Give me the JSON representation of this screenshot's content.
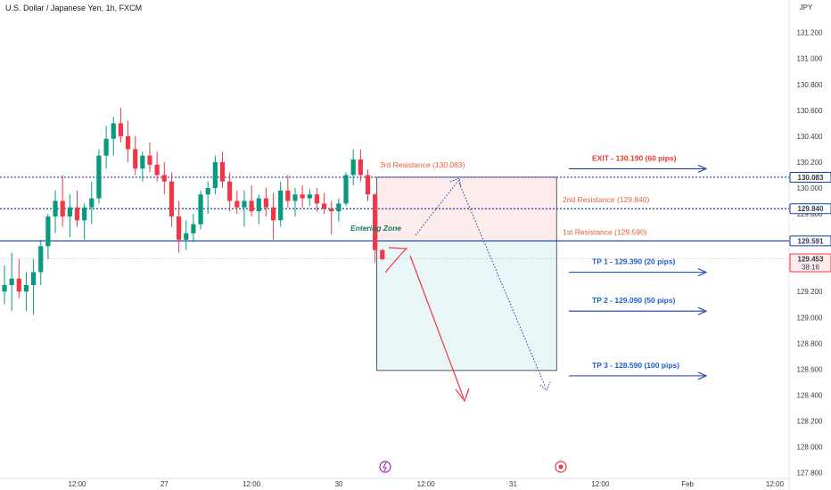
{
  "chart_data": {
    "type": "candlestick",
    "title": "U.S. Dollar / Japanese Yen, 1h, FXCM",
    "currency": "JPY",
    "ylim": [
      127.8,
      131.3
    ],
    "y_ticks": [
      "131.200",
      "131.000",
      "130.800",
      "130.600",
      "130.400",
      "130.200",
      "130.000",
      "129.800",
      "129.200",
      "129.000",
      "128.800",
      "128.600",
      "128.400",
      "128.200",
      "128.000",
      "127.800"
    ],
    "x_ticks": [
      {
        "label": "12:00",
        "index": 10
      },
      {
        "label": "27",
        "index": 22
      },
      {
        "label": "12:00",
        "index": 34
      },
      {
        "label": "30",
        "index": 46
      },
      {
        "label": "12:00",
        "index": 58
      },
      {
        "label": "31",
        "index": 70
      },
      {
        "label": "12:00",
        "index": 82
      },
      {
        "label": "Feb",
        "index": 94
      },
      {
        "label": "12:00",
        "index": 106
      }
    ],
    "candles": [
      [
        129.2,
        129.4,
        129.1,
        129.25
      ],
      [
        129.25,
        129.5,
        129.05,
        129.3
      ],
      [
        129.3,
        129.45,
        129.15,
        129.2
      ],
      [
        129.2,
        129.35,
        129.05,
        129.25
      ],
      [
        129.25,
        129.45,
        129.02,
        129.35
      ],
      [
        129.35,
        129.6,
        129.25,
        129.55
      ],
      [
        129.55,
        129.8,
        129.45,
        129.78
      ],
      [
        129.78,
        129.98,
        129.65,
        129.9
      ],
      [
        129.9,
        130.1,
        129.7,
        129.78
      ],
      [
        129.78,
        129.95,
        129.62,
        129.85
      ],
      [
        129.85,
        129.98,
        129.7,
        129.75
      ],
      [
        129.75,
        129.88,
        129.6,
        129.85
      ],
      [
        129.85,
        130.05,
        129.72,
        129.92
      ],
      [
        129.92,
        130.3,
        129.88,
        130.25
      ],
      [
        130.25,
        130.48,
        130.15,
        130.38
      ],
      [
        130.38,
        130.55,
        130.25,
        130.5
      ],
      [
        130.5,
        130.62,
        130.35,
        130.4
      ],
      [
        130.4,
        130.52,
        130.2,
        130.3
      ],
      [
        130.3,
        130.4,
        130.1,
        130.15
      ],
      [
        130.15,
        130.28,
        130.05,
        130.25
      ],
      [
        130.25,
        130.35,
        130.12,
        130.18
      ],
      [
        130.18,
        130.28,
        130.05,
        130.1
      ],
      [
        130.1,
        130.2,
        129.95,
        130.05
      ],
      [
        130.05,
        130.12,
        129.7,
        129.78
      ],
      [
        129.78,
        129.9,
        129.5,
        129.6
      ],
      [
        129.6,
        129.75,
        129.52,
        129.65
      ],
      [
        129.65,
        129.8,
        129.58,
        129.72
      ],
      [
        129.72,
        129.98,
        129.68,
        129.95
      ],
      [
        129.95,
        130.05,
        129.8,
        130.0
      ],
      [
        130.0,
        130.25,
        129.95,
        130.2
      ],
      [
        130.2,
        130.28,
        130.0,
        130.05
      ],
      [
        130.05,
        130.12,
        129.82,
        129.9
      ],
      [
        129.9,
        129.98,
        129.8,
        129.85
      ],
      [
        129.85,
        129.98,
        129.7,
        129.9
      ],
      [
        129.9,
        130.02,
        129.78,
        129.82
      ],
      [
        129.82,
        129.95,
        129.72,
        129.92
      ],
      [
        129.92,
        130.0,
        129.78,
        129.85
      ],
      [
        129.85,
        129.96,
        129.6,
        129.75
      ],
      [
        129.75,
        130.05,
        129.7,
        129.98
      ],
      [
        129.98,
        130.1,
        129.85,
        129.9
      ],
      [
        129.9,
        130.0,
        129.78,
        129.95
      ],
      [
        129.95,
        130.02,
        129.85,
        129.92
      ],
      [
        129.92,
        129.99,
        129.86,
        129.95
      ],
      [
        129.95,
        130.0,
        129.82,
        129.88
      ],
      [
        129.88,
        129.96,
        129.8,
        129.84
      ],
      [
        129.84,
        129.9,
        129.64,
        129.82
      ],
      [
        129.82,
        129.92,
        129.74,
        129.88
      ],
      [
        129.88,
        130.12,
        129.86,
        130.1
      ],
      [
        130.1,
        130.3,
        130.02,
        130.22
      ],
      [
        130.22,
        130.3,
        130.05,
        130.1
      ],
      [
        130.1,
        130.14,
        129.9,
        129.95
      ],
      [
        129.95,
        129.96,
        129.42,
        129.52
      ],
      [
        129.52,
        129.53,
        129.44,
        129.45
      ]
    ],
    "current_price": 129.453,
    "countdown": "38:16",
    "horizontal_lines": [
      {
        "price": 130.083,
        "style": "dotted",
        "color": "#1a3ea3"
      },
      {
        "price": 129.84,
        "style": "dotted",
        "color": "#1a3ea3"
      },
      {
        "price": 129.591,
        "style": "solid",
        "color": "#1a3ea3"
      }
    ],
    "price_labels": [
      {
        "label": "130.083",
        "price": 130.083,
        "color": "#1a3ea3"
      },
      {
        "label": "129.840",
        "price": 129.84,
        "color": "#1a3ea3"
      },
      {
        "label": "129.591",
        "price": 129.591,
        "color": "#1a3ea3"
      },
      {
        "label": "129.453",
        "price": 129.453,
        "color": "#f23645"
      }
    ],
    "resistance_labels": [
      {
        "text": "3rd Resistance (130.083)",
        "price": 130.083
      },
      {
        "text": "2nd Resistance (129.840)",
        "price": 129.84
      },
      {
        "text": "1st Resistance (129.590)",
        "price": 129.59
      }
    ],
    "entering_zone_label": "Entering Zone",
    "targets": [
      {
        "text": "EXIT - 130.190 (60 pips)",
        "price": 130.19,
        "color": "#e53935",
        "arrow_color": "#1a3ea3"
      },
      {
        "text": "TP 1 - 129.390 (20 pips)",
        "price": 129.39,
        "color": "#1e5ec7",
        "arrow_color": "#1a3ea3"
      },
      {
        "text": "TP 2 - 129.090 (50 pips)",
        "price": 129.09,
        "color": "#1e5ec7",
        "arrow_color": "#1a3ea3"
      },
      {
        "text": "TP 3 - 128.590 (100 pips)",
        "price": 128.59,
        "color": "#1e5ec7",
        "arrow_color": "#1a3ea3"
      }
    ],
    "zones": [
      {
        "name": "stop-zone",
        "price_top": 130.083,
        "price_bottom": 129.591,
        "fill": "#fdecec"
      },
      {
        "name": "profit-zone",
        "price_top": 129.591,
        "price_bottom": 128.59,
        "fill": "#e9f6f8"
      }
    ],
    "colors": {
      "up": "#089981",
      "down": "#f23645",
      "level": "#1a3ea3",
      "axis_text": "#333a45"
    }
  }
}
